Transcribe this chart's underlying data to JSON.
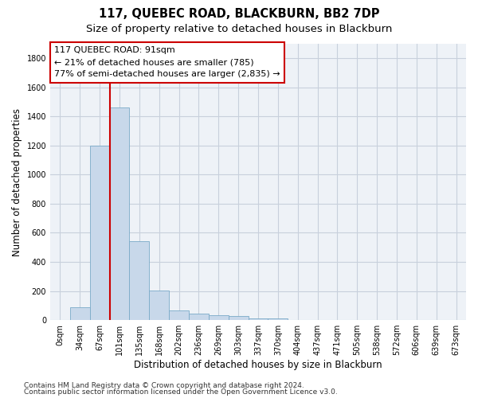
{
  "title": "117, QUEBEC ROAD, BLACKBURN, BB2 7DP",
  "subtitle": "Size of property relative to detached houses in Blackburn",
  "xlabel": "Distribution of detached houses by size in Blackburn",
  "ylabel": "Number of detached properties",
  "footer_line1": "Contains HM Land Registry data © Crown copyright and database right 2024.",
  "footer_line2": "Contains public sector information licensed under the Open Government Licence v3.0.",
  "bar_labels": [
    "0sqm",
    "34sqm",
    "67sqm",
    "101sqm",
    "135sqm",
    "168sqm",
    "202sqm",
    "236sqm",
    "269sqm",
    "303sqm",
    "337sqm",
    "370sqm",
    "404sqm",
    "437sqm",
    "471sqm",
    "505sqm",
    "538sqm",
    "572sqm",
    "606sqm",
    "639sqm",
    "673sqm"
  ],
  "bar_values": [
    0,
    90,
    1200,
    1460,
    540,
    205,
    65,
    45,
    35,
    27,
    12,
    10,
    0,
    0,
    0,
    0,
    0,
    0,
    0,
    0,
    0
  ],
  "bar_color": "#c8d8ea",
  "bar_edge_color": "#7aaac8",
  "vline_x": 3.0,
  "vline_color": "#cc0000",
  "annotation_line1": "117 QUEBEC ROAD: 91sqm",
  "annotation_line2": "← 21% of detached houses are smaller (785)",
  "annotation_line3": "77% of semi-detached houses are larger (2,835) →",
  "annotation_box_color": "#ffffff",
  "annotation_box_edge": "#cc0000",
  "ylim": [
    0,
    1900
  ],
  "yticks": [
    0,
    200,
    400,
    600,
    800,
    1000,
    1200,
    1400,
    1600,
    1800
  ],
  "grid_color": "#c8d0dc",
  "bg_color": "#eef2f7",
  "title_fontsize": 10.5,
  "subtitle_fontsize": 9.5,
  "tick_fontsize": 7,
  "ylabel_fontsize": 8.5,
  "xlabel_fontsize": 8.5,
  "footer_fontsize": 6.5,
  "annotation_fontsize": 8
}
